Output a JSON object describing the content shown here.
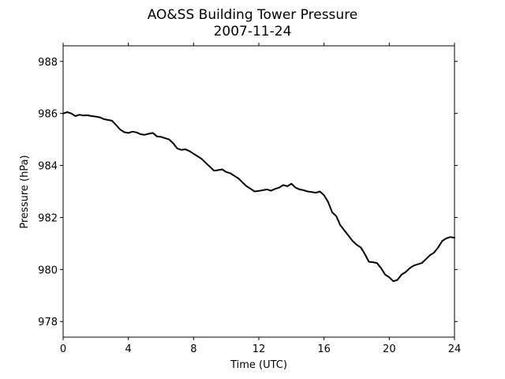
{
  "chart_data": {
    "type": "line",
    "title": "AO&SS Building Tower Pressure",
    "subtitle": "2007-11-24",
    "xlabel": "Time (UTC)",
    "ylabel": "Pressure (hPa)",
    "xlim": [
      0,
      24
    ],
    "ylim": [
      977.4,
      988.6
    ],
    "xticks": [
      0,
      4,
      8,
      12,
      16,
      20,
      24
    ],
    "yticks": [
      978,
      980,
      982,
      984,
      986,
      988
    ],
    "grid": false,
    "line_color": "#000000",
    "series": [
      {
        "x": [
          0,
          0.25,
          0.5,
          0.75,
          1.0,
          1.25,
          1.5,
          1.75,
          2.0,
          2.25,
          2.5,
          2.75,
          3.0,
          3.25,
          3.5,
          3.75,
          4.0,
          4.25,
          4.5,
          4.75,
          5.0,
          5.25,
          5.5,
          5.75,
          6.0,
          6.25,
          6.5,
          6.75,
          7.0,
          7.25,
          7.5,
          7.75,
          8.0,
          8.25,
          8.5,
          8.75,
          9.0,
          9.25,
          9.5,
          9.75,
          10.0,
          10.25,
          10.5,
          10.75,
          11.0,
          11.25,
          11.5,
          11.75,
          12.0,
          12.25,
          12.5,
          12.75,
          13.0,
          13.25,
          13.5,
          13.75,
          14.0,
          14.25,
          14.5,
          14.75,
          15.0,
          15.25,
          15.5,
          15.75,
          16.0,
          16.25,
          16.5,
          16.75,
          17.0,
          17.25,
          17.5,
          17.75,
          18.0,
          18.25,
          18.5,
          18.75,
          19.0,
          19.25,
          19.5,
          19.75,
          20.0,
          20.25,
          20.5,
          20.75,
          21.0,
          21.25,
          21.5,
          21.75,
          22.0,
          22.25,
          22.5,
          22.75,
          23.0,
          23.25,
          23.5,
          23.75,
          24.0
        ],
        "values": [
          986.0,
          986.05,
          986.0,
          985.9,
          985.95,
          985.92,
          985.93,
          985.9,
          985.88,
          985.85,
          985.78,
          985.75,
          985.72,
          985.55,
          985.38,
          985.28,
          985.25,
          985.3,
          985.27,
          985.2,
          985.18,
          985.22,
          985.25,
          985.12,
          985.1,
          985.05,
          985.0,
          984.85,
          984.65,
          984.6,
          984.62,
          984.55,
          984.45,
          984.35,
          984.25,
          984.1,
          983.95,
          983.8,
          983.82,
          983.85,
          983.75,
          983.7,
          983.6,
          983.5,
          983.35,
          983.2,
          983.1,
          983.0,
          983.02,
          983.05,
          983.08,
          983.03,
          983.1,
          983.15,
          983.25,
          983.2,
          983.3,
          983.15,
          983.08,
          983.05,
          983.0,
          982.98,
          982.95,
          983.0,
          982.85,
          982.6,
          982.2,
          982.05,
          981.7,
          981.5,
          981.3,
          981.1,
          980.95,
          980.85,
          980.6,
          980.3,
          980.28,
          980.25,
          980.05,
          979.8,
          979.7,
          979.55,
          979.6,
          979.8,
          979.9,
          980.05,
          980.15,
          980.2,
          980.25,
          980.4,
          980.55,
          980.65,
          980.85,
          981.1,
          981.2,
          981.25,
          981.22
        ]
      }
    ]
  }
}
